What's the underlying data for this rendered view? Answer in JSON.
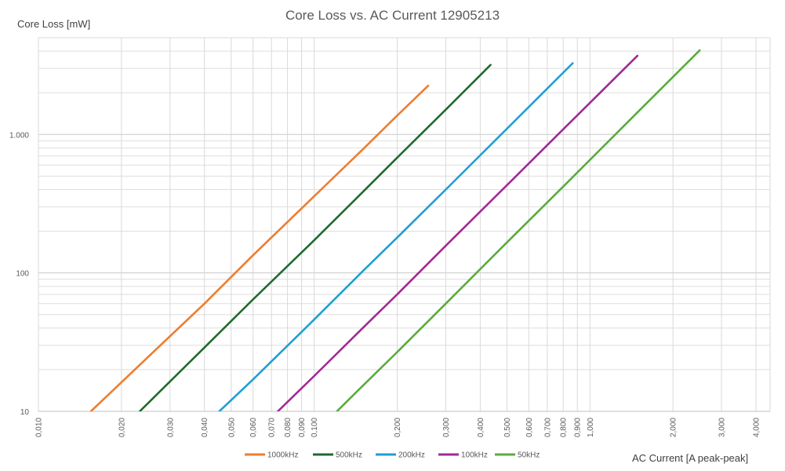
{
  "chart_data": {
    "type": "line",
    "title": "Core Loss vs. AC Current 12905213",
    "xlabel": "AC Current [A peak-peak]",
    "ylabel": "Core Loss [mW]",
    "xscale": "log",
    "yscale": "log",
    "xlim": [
      0.01,
      4.5
    ],
    "ylim": [
      10,
      5000
    ],
    "grid": true,
    "legend_position": "bottom",
    "x_tick_labels": [
      "0,010",
      "0,020",
      "0,030",
      "0,040",
      "0,050",
      "0,060",
      "0,070",
      "0,080",
      "0,090",
      "0,100",
      "0,200",
      "0,300",
      "0,400",
      "0,500",
      "0,600",
      "0,700",
      "0,800",
      "0,900",
      "1,000",
      "2,000",
      "3,000",
      "4,000"
    ],
    "y_tick_labels": [
      "10",
      "100",
      "1.000"
    ],
    "series": [
      {
        "name": "1000kHz",
        "color": "#ed7d31",
        "x": [
          0.0155,
          0.025,
          0.04,
          0.06,
          0.1,
          0.15,
          0.2,
          0.259
        ],
        "y": [
          10,
          24.7,
          60,
          134,
          358,
          780,
          1370,
          2250
        ]
      },
      {
        "name": "500kHz",
        "color": "#1e6b2e",
        "x": [
          0.0233,
          0.04,
          0.06,
          0.1,
          0.15,
          0.2,
          0.3,
          0.436
        ],
        "y": [
          10,
          28.9,
          64.3,
          172,
          384,
          680,
          1510,
          3180
        ]
      },
      {
        "name": "200kHz",
        "color": "#1f9fd4",
        "x": [
          0.0453,
          0.06,
          0.1,
          0.15,
          0.2,
          0.3,
          0.5,
          0.866
        ],
        "y": [
          10,
          17,
          46,
          103,
          180,
          400,
          1100,
          3270
        ]
      },
      {
        "name": "100kHz",
        "color": "#a02b93",
        "x": [
          0.0738,
          0.1,
          0.15,
          0.2,
          0.3,
          0.5,
          0.8,
          1.486
        ],
        "y": [
          10,
          18,
          40,
          70,
          157,
          430,
          1090,
          3700
        ]
      },
      {
        "name": "50kHz",
        "color": "#5aab3e",
        "x": [
          0.1209,
          0.15,
          0.2,
          0.3,
          0.5,
          0.8,
          1.5,
          2.5
        ],
        "y": [
          10,
          15.3,
          26.8,
          60,
          166,
          420,
          1470,
          4050
        ]
      }
    ]
  }
}
